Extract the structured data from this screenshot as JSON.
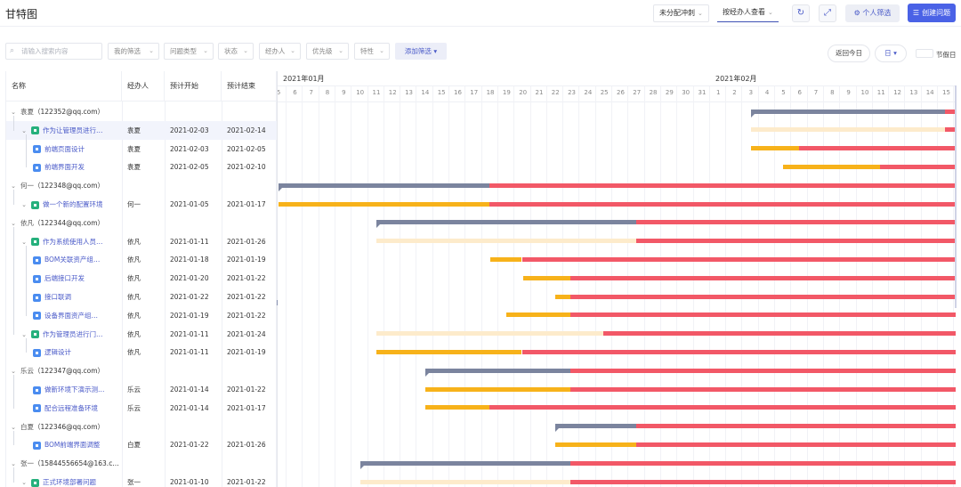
{
  "header": {
    "title": "甘特图",
    "unassigned_select": "未分配冲刺",
    "view_select": "按经办人查看",
    "refresh_icon": "refresh-icon",
    "fullscreen_icon": "fullscreen-icon",
    "personal_filter_label": "个人筛选",
    "create_issue_label": "创建问题"
  },
  "filters": {
    "search_placeholder": "请输入搜索内容",
    "chips": [
      {
        "label": "我的筛选"
      },
      {
        "label": "问题类型"
      },
      {
        "label": "状态"
      },
      {
        "label": "经办人"
      },
      {
        "label": "优先级"
      },
      {
        "label": "特性"
      }
    ],
    "add_filter_label": "添加筛选",
    "today_label": "返回今日",
    "unit_label": "日",
    "holiday_label": "节假日"
  },
  "table": {
    "columns": {
      "name": "名称",
      "assignee": "经办人",
      "start": "预计开始",
      "end": "预计结束"
    },
    "rows": [
      {
        "type": "group",
        "name": "袁夏",
        "mail": "（122352@qq.com）",
        "assignee": "",
        "start": "",
        "end": ""
      },
      {
        "type": "story",
        "name": "作为让管理员进行…",
        "assignee": "袁夏",
        "start": "2021-02-03",
        "end": "2021-02-14"
      },
      {
        "type": "task",
        "name": "前端页面设计",
        "assignee": "袁夏",
        "start": "2021-02-03",
        "end": "2021-02-05"
      },
      {
        "type": "task",
        "name": "前端界面开发",
        "assignee": "袁夏",
        "start": "2021-02-05",
        "end": "2021-02-10"
      },
      {
        "type": "group",
        "name": "何一",
        "mail": "（122348@qq.com）",
        "assignee": "",
        "start": "",
        "end": ""
      },
      {
        "type": "story",
        "name": "做一个新的配置环境",
        "assignee": "何一",
        "start": "2021-01-05",
        "end": "2021-01-17"
      },
      {
        "type": "group",
        "name": "依凡",
        "mail": "（122344@qq.com）",
        "assignee": "",
        "start": "",
        "end": ""
      },
      {
        "type": "story",
        "name": "作为系统使用人员…",
        "assignee": "依凡",
        "start": "2021-01-11",
        "end": "2021-01-26"
      },
      {
        "type": "task",
        "name": "BOM关联资产组…",
        "assignee": "依凡",
        "start": "2021-01-18",
        "end": "2021-01-19"
      },
      {
        "type": "task",
        "name": "后端接口开发",
        "assignee": "依凡",
        "start": "2021-01-20",
        "end": "2021-01-22"
      },
      {
        "type": "task",
        "name": "接口联调",
        "assignee": "依凡",
        "start": "2021-01-22",
        "end": "2021-01-22"
      },
      {
        "type": "task",
        "name": "设备界面资产组…",
        "assignee": "依凡",
        "start": "2021-01-19",
        "end": "2021-01-22"
      },
      {
        "type": "story",
        "name": "作为管理员进行门…",
        "assignee": "依凡",
        "start": "2021-01-11",
        "end": "2021-01-24"
      },
      {
        "type": "task",
        "name": "逻辑设计",
        "assignee": "依凡",
        "start": "2021-01-11",
        "end": "2021-01-19"
      },
      {
        "type": "group",
        "name": "乐云",
        "mail": "（122347@qq.com）",
        "assignee": "",
        "start": "",
        "end": ""
      },
      {
        "type": "task",
        "name": "做新环境下演示测…",
        "assignee": "乐云",
        "start": "2021-01-14",
        "end": "2021-01-22"
      },
      {
        "type": "task",
        "name": "配合远程准备环境",
        "assignee": "乐云",
        "start": "2021-01-14",
        "end": "2021-01-17"
      },
      {
        "type": "group",
        "name": "白夏",
        "mail": "（122346@qq.com）",
        "assignee": "",
        "start": "",
        "end": ""
      },
      {
        "type": "task",
        "name": "BOM前端界面调整",
        "assignee": "白夏",
        "start": "2021-01-22",
        "end": "2021-01-26"
      },
      {
        "type": "group",
        "name": "张一",
        "mail": "（15844556654@163.c…",
        "assignee": "",
        "start": "",
        "end": ""
      },
      {
        "type": "story",
        "name": "正式环境部署问题",
        "assignee": "张一",
        "start": "2021-01-10",
        "end": "2021-01-22"
      }
    ]
  },
  "gantt": {
    "months": [
      {
        "label": "2021年01月"
      },
      {
        "label": "2021年02月"
      }
    ],
    "days": [
      "5",
      "6",
      "7",
      "8",
      "9",
      "10",
      "11",
      "12",
      "13",
      "14",
      "15",
      "16",
      "17",
      "18",
      "19",
      "20",
      "21",
      "22",
      "23",
      "24",
      "25",
      "26",
      "27",
      "28",
      "29",
      "30",
      "31",
      "1",
      "2",
      "3",
      "4",
      "5",
      "6",
      "7",
      "8",
      "9",
      "10",
      "11",
      "12",
      "13",
      "14",
      "15"
    ],
    "colors": {
      "summary": "#7b849e",
      "planned": "#f7b21a",
      "overdue": "#f25867",
      "pending": "#fdebcb",
      "holiday_line": "#eef0f5"
    }
  }
}
